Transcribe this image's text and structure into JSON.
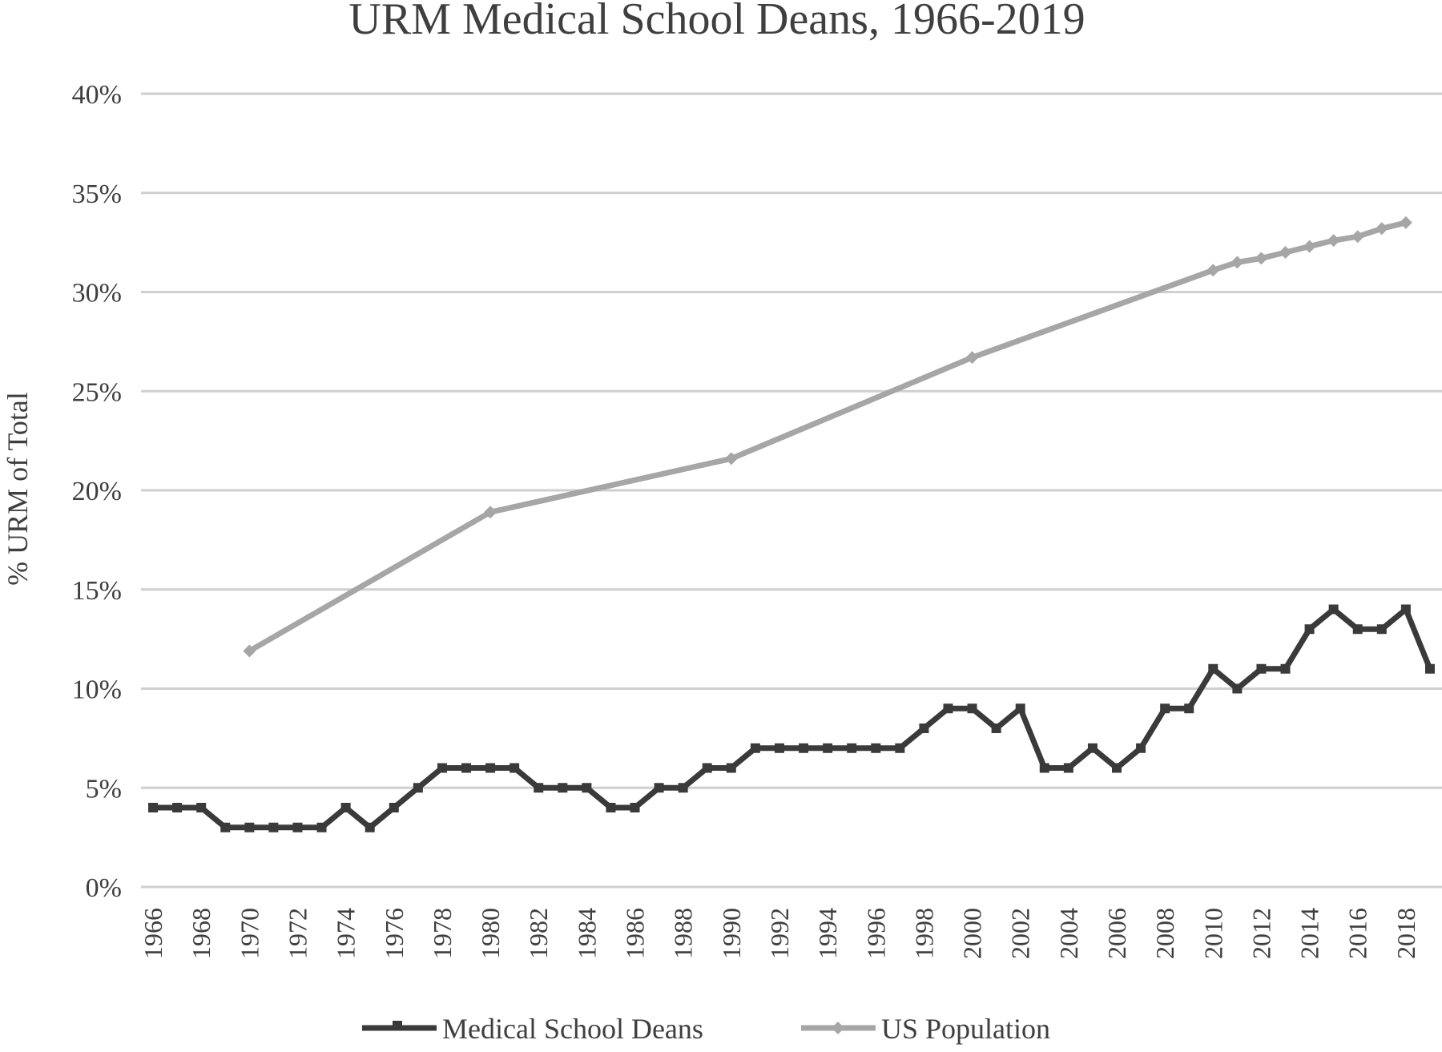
{
  "colors": {
    "deans": "#3a3a3a",
    "population": "#a6a6a6",
    "grid": "#cfcfcf",
    "text": "#3f3f3f"
  },
  "chart_data": {
    "type": "line",
    "title": "URM Medical  School Deans, 1966-2019",
    "xlabel": "",
    "ylabel": "% URM of Total",
    "ylim": [
      0,
      40
    ],
    "xlim": [
      1966,
      2019
    ],
    "yticks": [
      0,
      5,
      10,
      15,
      20,
      25,
      30,
      35,
      40
    ],
    "ytick_labels": [
      "0%",
      "5%",
      "10%",
      "15%",
      "20%",
      "25%",
      "30%",
      "35%",
      "40%"
    ],
    "xtick_labels": [
      "1966",
      "1968",
      "1970",
      "1972",
      "1974",
      "1976",
      "1978",
      "1980",
      "1982",
      "1984",
      "1986",
      "1988",
      "1990",
      "1992",
      "1994",
      "1996",
      "1998",
      "2000",
      "2002",
      "2004",
      "2006",
      "2008",
      "2010",
      "2012",
      "2014",
      "2016",
      "2018"
    ],
    "grid": true,
    "legend_position": "bottom",
    "series": [
      {
        "name": "Medical School Deans",
        "marker": "square",
        "x": [
          1966,
          1967,
          1968,
          1969,
          1970,
          1971,
          1972,
          1973,
          1974,
          1975,
          1976,
          1977,
          1978,
          1979,
          1980,
          1981,
          1982,
          1983,
          1984,
          1985,
          1986,
          1987,
          1988,
          1989,
          1990,
          1991,
          1992,
          1993,
          1994,
          1995,
          1996,
          1997,
          1998,
          1999,
          2000,
          2001,
          2002,
          2003,
          2004,
          2005,
          2006,
          2007,
          2008,
          2009,
          2010,
          2011,
          2012,
          2013,
          2014,
          2015,
          2016,
          2017,
          2018,
          2019
        ],
        "values": [
          4,
          4,
          4,
          3,
          3,
          3,
          3,
          3,
          4,
          3,
          4,
          5,
          6,
          6,
          6,
          6,
          5,
          5,
          5,
          4,
          4,
          5,
          5,
          6,
          6,
          7,
          7,
          7,
          7,
          7,
          7,
          7,
          8,
          9,
          9,
          8,
          9,
          6,
          6,
          7,
          6,
          7,
          9,
          9,
          11,
          10,
          11,
          11,
          13,
          14,
          13,
          13,
          14,
          11
        ]
      },
      {
        "name": "US Population",
        "marker": "diamond",
        "x": [
          1970,
          1980,
          1990,
          2000,
          2010,
          2011,
          2012,
          2013,
          2014,
          2015,
          2016,
          2017,
          2018
        ],
        "values": [
          11.9,
          18.9,
          21.6,
          26.7,
          31.1,
          31.5,
          31.7,
          32.0,
          32.3,
          32.6,
          32.8,
          33.2,
          33.5
        ]
      }
    ]
  }
}
